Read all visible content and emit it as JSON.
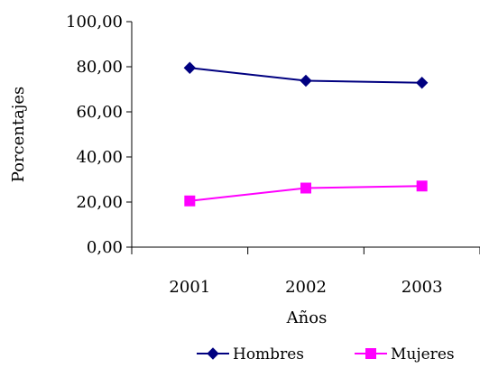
{
  "chart_data": {
    "type": "line",
    "title": "",
    "xlabel": "Años",
    "ylabel": "Porcentajes",
    "categories": [
      "2001",
      "2002",
      "2003"
    ],
    "ylim": [
      0,
      100
    ],
    "yticks": [
      "0,00",
      "20,00",
      "40,00",
      "60,00",
      "80,00",
      "100,00"
    ],
    "grid": false,
    "legend": "bottom",
    "series": [
      {
        "name": "Hombres",
        "values": [
          79.5,
          73.8,
          72.9
        ],
        "color": "#000080",
        "marker": "diamond"
      },
      {
        "name": "Mujeres",
        "values": [
          20.5,
          26.2,
          27.1
        ],
        "color": "#ff00ff",
        "marker": "square"
      }
    ]
  }
}
